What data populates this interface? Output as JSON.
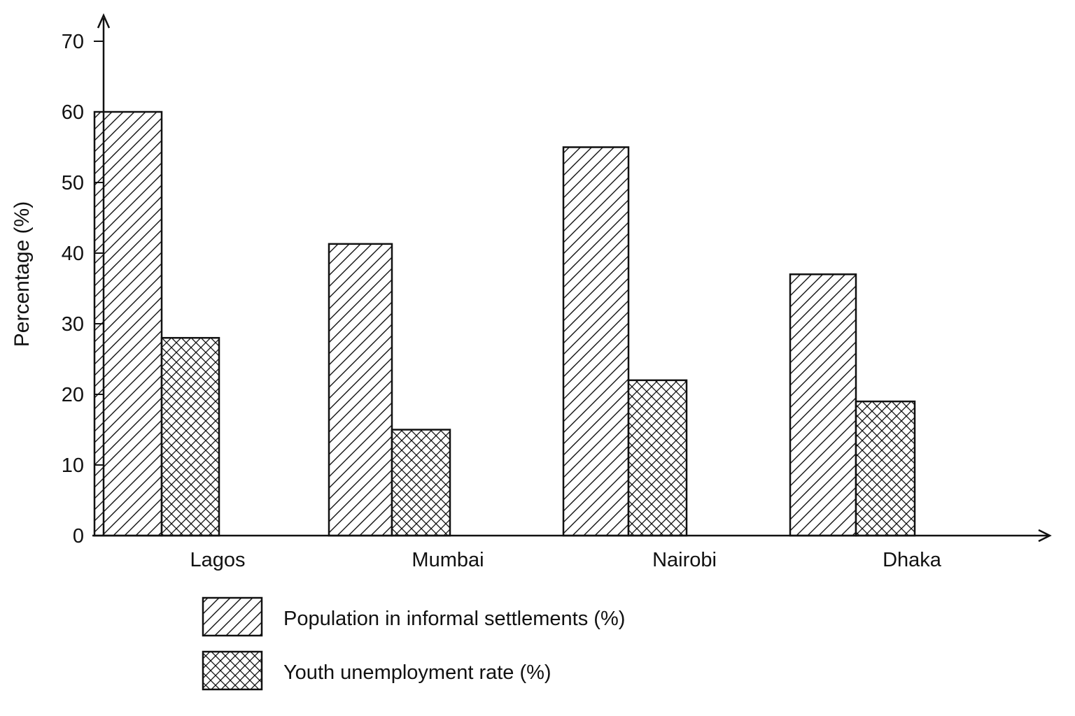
{
  "chart_data": {
    "type": "bar",
    "title": "",
    "xlabel": "",
    "ylabel": "Percentage (%)",
    "ylim": [
      0,
      70
    ],
    "yticks": [
      0,
      10,
      20,
      30,
      40,
      50,
      60,
      70
    ],
    "grid": false,
    "legend_position": "bottom",
    "categories": [
      "Lagos",
      "Mumbai",
      "Nairobi",
      "Dhaka"
    ],
    "series": [
      {
        "name": "Population in informal settlements (%)",
        "pattern": "diagonal-hatch",
        "values": [
          60,
          41.3,
          55,
          37
        ]
      },
      {
        "name": "Youth unemployment rate (%)",
        "pattern": "cross-hatch",
        "values": [
          28,
          15,
          22,
          19
        ]
      }
    ],
    "colors": {
      "stroke": "#111111",
      "fill": "#ffffff"
    }
  }
}
